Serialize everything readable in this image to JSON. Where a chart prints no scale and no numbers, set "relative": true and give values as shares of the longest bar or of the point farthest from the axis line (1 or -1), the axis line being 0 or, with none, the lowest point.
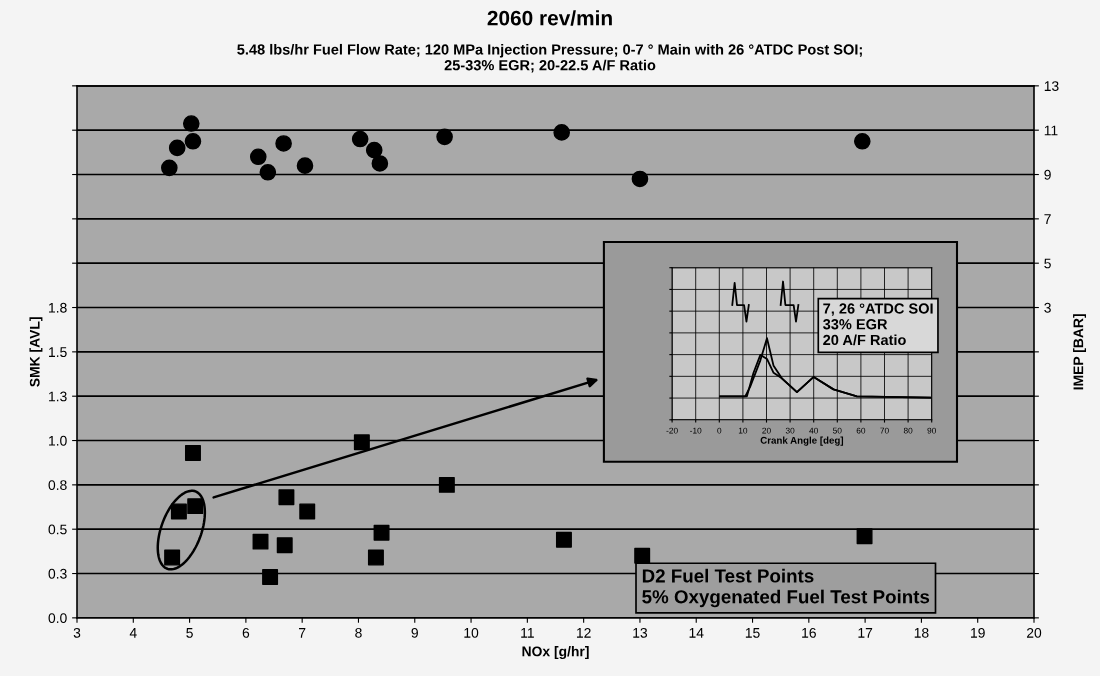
{
  "chart_data": [
    {
      "type": "scatter",
      "title": "2060 rev/min",
      "subtitle": "5.48 lbs/hr Fuel Flow Rate; 120 MPa Injection Pressure; 0-7 ° Main with 26 °ATDC Post SOI;\n25-33% EGR; 20-22.5 A/F Ratio",
      "xlabel": "NOx [g/hr]",
      "ylabel": "SMK [AVL]",
      "y2label": "IMEP [BAR]",
      "xlim": [
        3,
        20
      ],
      "xticks": [
        3,
        4,
        5,
        6,
        7,
        8,
        9,
        10,
        11,
        12,
        13,
        14,
        15,
        16,
        17,
        18,
        19,
        20
      ],
      "ylim": [
        0,
        3
      ],
      "yticks": [
        {
          "value": 0,
          "label": "0.0"
        },
        {
          "value": 0.25,
          "label": "0.3"
        },
        {
          "value": 0.5,
          "label": "0.5"
        },
        {
          "value": 0.75,
          "label": "0.8"
        },
        {
          "value": 1,
          "label": "1.0"
        },
        {
          "value": 1.25,
          "label": "1.3"
        },
        {
          "value": 1.5,
          "label": "1.5"
        },
        {
          "value": 1.75,
          "label": "1.8"
        },
        {
          "value": 2,
          "label": null
        },
        {
          "value": 2.25,
          "label": null
        },
        {
          "value": 2.5,
          "label": null
        },
        {
          "value": 2.75,
          "label": null
        },
        {
          "value": 3,
          "label": null
        }
      ],
      "y2lim": [
        -11,
        13
      ],
      "y2ticks": [
        {
          "value": -11,
          "label": null
        },
        {
          "value": -9,
          "label": null
        },
        {
          "value": -7,
          "label": null
        },
        {
          "value": -5,
          "label": null
        },
        {
          "value": -3,
          "label": null
        },
        {
          "value": -1,
          "label": null
        },
        {
          "value": 1,
          "label": null
        },
        3,
        5,
        7,
        9,
        11,
        13
      ],
      "grid": "y",
      "series": [
        {
          "axis": "y2",
          "marker": "circle",
          "color": "#000000",
          "x": [
            4.64,
            4.78,
            5.03,
            5.06,
            6.22,
            6.39,
            6.67,
            7.05,
            8.03,
            8.28,
            8.38,
            9.53,
            11.61,
            13.0,
            16.95
          ],
          "values": [
            9.3,
            10.2,
            11.3,
            10.5,
            9.8,
            9.1,
            10.4,
            9.4,
            10.6,
            10.1,
            9.5,
            10.7,
            10.9,
            8.8,
            10.5
          ]
        },
        {
          "axis": "y",
          "marker": "square",
          "color": "#000000",
          "x": [
            4.69,
            4.81,
            5.06,
            5.1,
            6.26,
            6.43,
            6.69,
            6.72,
            7.09,
            8.06,
            8.31,
            8.41,
            9.57,
            11.65,
            13.04,
            16.99
          ],
          "values": [
            0.34,
            0.6,
            0.93,
            0.63,
            0.43,
            0.23,
            0.41,
            0.68,
            0.6,
            0.99,
            0.34,
            0.48,
            0.75,
            0.44,
            0.35,
            0.46
          ]
        }
      ],
      "annotations": [
        "D2 Fuel Test Points\n5% Oxygenated Fuel Test Points"
      ]
    },
    {
      "type": "line",
      "relative": true,
      "xlabel": "Crank Angle [deg]",
      "xlim": [
        -20,
        90
      ],
      "xticks": [
        -20,
        -10,
        0,
        10,
        20,
        30,
        40,
        50,
        60,
        70,
        80,
        90
      ],
      "tick_labels": "x",
      "grid": true,
      "series": [
        {
          "color": "#000000",
          "x": [
            5.5,
            6.5,
            7.5,
            10.5,
            11.5,
            12.5,
            22,
            26,
            27,
            28,
            31.5,
            32.5,
            33.5
          ],
          "values": [
            0.83,
            0.99,
            0.83,
            0.83,
            0.71,
            0.83,
            null,
            0.83,
            1.0,
            0.83,
            0.83,
            0.71,
            0.83
          ]
        },
        {
          "color": "#000000",
          "x": [
            0.4,
            11,
            13.1,
            17.4,
            20.2,
            23,
            26.5,
            32.9,
            40,
            48.4,
            58.3,
            89.3
          ],
          "values": [
            0.17,
            0.17,
            0.24,
            0.43,
            0.59,
            0.39,
            0.3,
            0.2,
            0.31,
            0.22,
            0.17,
            0.16
          ]
        },
        {
          "color": "#000000",
          "x": [
            0.4,
            11.7,
            14.5,
            17.4,
            20.2,
            23,
            26.5,
            32.9,
            40,
            48.4,
            58.3,
            89.3
          ],
          "values": [
            0.17,
            0.17,
            0.34,
            0.47,
            0.44,
            0.34,
            0.3,
            0.2,
            0.31,
            0.22,
            0.17,
            0.16
          ]
        }
      ],
      "annotations": [
        "7, 26 °ATDC SOI\n33% EGR\n20 A/F Ratio"
      ]
    }
  ]
}
